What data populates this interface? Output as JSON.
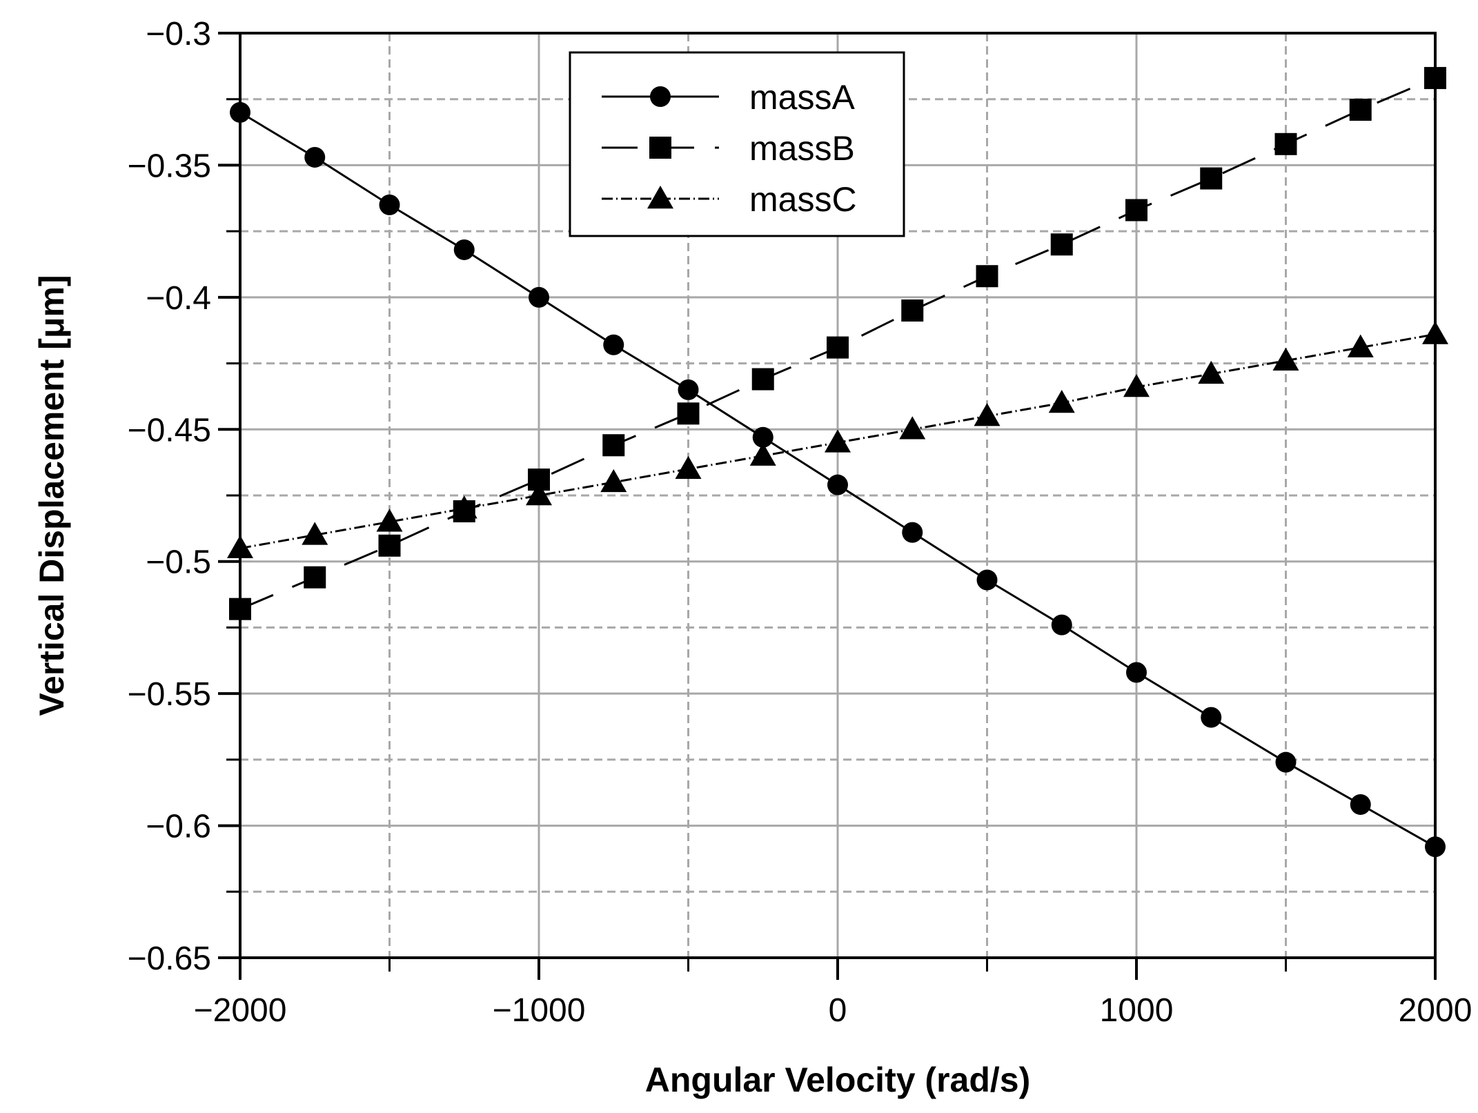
{
  "chart_data": {
    "type": "line",
    "title": "",
    "xlabel": "Angular Velocity (rad/s)",
    "ylabel": "Vertical Displacement [μm]",
    "xlim": [
      -2000,
      2000
    ],
    "ylim": [
      -0.65,
      -0.3
    ],
    "grid": true,
    "legend_position": "top-center",
    "x": [
      -2000,
      -1750,
      -1500,
      -1250,
      -1000,
      -750,
      -500,
      -250,
      0,
      250,
      500,
      750,
      1000,
      1250,
      1500,
      1750,
      2000
    ],
    "x_ticks": [
      -2000,
      -1000,
      0,
      1000,
      2000
    ],
    "x_tick_labels": [
      "−2000",
      "−1000",
      "0",
      "1000",
      "2000"
    ],
    "y_ticks": [
      -0.3,
      -0.35,
      -0.4,
      -0.45,
      -0.5,
      -0.55,
      -0.6,
      -0.65
    ],
    "y_tick_labels": [
      "−0.3",
      "−0.35",
      "−0.4",
      "−0.45",
      "−0.5",
      "−0.55",
      "−0.6",
      "−0.65"
    ],
    "series": [
      {
        "name": "massA",
        "marker": "circle",
        "line_style": "solid",
        "values": [
          -0.33,
          -0.347,
          -0.365,
          -0.382,
          -0.4,
          -0.418,
          -0.435,
          -0.453,
          -0.471,
          -0.489,
          -0.507,
          -0.524,
          -0.542,
          -0.559,
          -0.576,
          -0.592,
          -0.608
        ]
      },
      {
        "name": "massB",
        "marker": "square",
        "line_style": "dashed",
        "values": [
          -0.518,
          -0.506,
          -0.494,
          -0.481,
          -0.469,
          -0.456,
          -0.444,
          -0.431,
          -0.419,
          -0.405,
          -0.392,
          -0.38,
          -0.367,
          -0.355,
          -0.342,
          -0.329,
          -0.317
        ]
      },
      {
        "name": "massC",
        "marker": "triangle",
        "line_style": "dash-dot",
        "values": [
          -0.495,
          -0.49,
          -0.485,
          -0.48,
          -0.475,
          -0.47,
          -0.465,
          -0.46,
          -0.455,
          -0.45,
          -0.445,
          -0.44,
          -0.434,
          -0.429,
          -0.424,
          -0.419,
          -0.414
        ]
      }
    ]
  }
}
